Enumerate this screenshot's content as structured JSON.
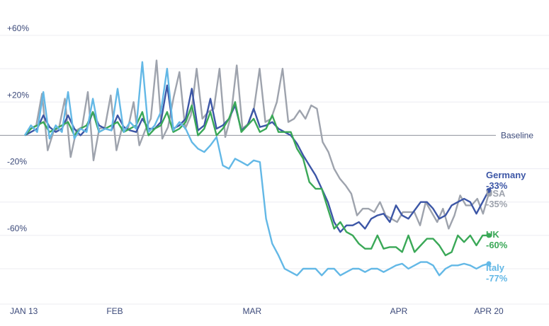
{
  "chart_data": {
    "type": "line",
    "title": "",
    "xlabel": "",
    "ylabel": "",
    "x_start": "2020-01-13",
    "x_ticks": [
      {
        "label": "JAN 13",
        "date": "2020-01-13"
      },
      {
        "label": "FEB",
        "date": "2020-02-01"
      },
      {
        "label": "MAR",
        "date": "2020-03-01"
      },
      {
        "label": "APR",
        "date": "2020-04-01"
      },
      {
        "label": "APR 20",
        "date": "2020-04-20"
      }
    ],
    "y_ticks": [
      {
        "label": "+60%",
        "value": 60
      },
      {
        "label": "+20%",
        "value": 20
      },
      {
        "label": "-20%",
        "value": -20
      },
      {
        "label": "-60%",
        "value": -60
      }
    ],
    "ylim": [
      -100,
      80
    ],
    "grid": true,
    "baseline": {
      "label": "Baseline",
      "value": 0
    },
    "series": [
      {
        "name": "USA",
        "end_label": "-35%",
        "color": "#9ea3ad",
        "values": [
          0,
          4,
          6,
          25,
          -9,
          2,
          5,
          22,
          -13,
          3,
          5,
          26,
          -15,
          4,
          5,
          24,
          -9,
          5,
          4,
          20,
          -6,
          3,
          10,
          45,
          -2,
          5,
          23,
          38,
          4,
          12,
          40,
          10,
          14,
          16,
          40,
          -1,
          12,
          42,
          4,
          7,
          16,
          40,
          8,
          10,
          20,
          40,
          8,
          10,
          15,
          10,
          18,
          16,
          -4,
          -10,
          -20,
          -26,
          -30,
          -35,
          -48,
          -44,
          -44,
          -46,
          -40,
          -48,
          -50,
          -52,
          -46,
          -46,
          -46,
          -54,
          -40,
          -46,
          -52,
          -44,
          -56,
          -48,
          -36,
          -42,
          -42,
          -38,
          -47,
          -35
        ]
      },
      {
        "name": "Germany",
        "end_label": "-33%",
        "color": "#3c56a6",
        "values": [
          0,
          2,
          4,
          12,
          5,
          2,
          4,
          12,
          4,
          0,
          4,
          14,
          6,
          4,
          3,
          12,
          5,
          3,
          2,
          10,
          4,
          4,
          8,
          30,
          4,
          6,
          10,
          28,
          3,
          6,
          22,
          4,
          6,
          10,
          18,
          3,
          6,
          16,
          5,
          6,
          8,
          4,
          2,
          0,
          -5,
          -12,
          -18,
          -24,
          -32,
          -40,
          -52,
          -58,
          -54,
          -54,
          -52,
          -56,
          -50,
          -48,
          -47,
          -52,
          -42,
          -48,
          -50,
          -45,
          -40,
          -40,
          -44,
          -50,
          -48,
          -42,
          -40,
          -38,
          -40,
          -47,
          -40,
          -33
        ]
      },
      {
        "name": "UK",
        "end_label": "-60%",
        "color": "#3aa857",
        "values": [
          0,
          4,
          6,
          8,
          2,
          4,
          6,
          8,
          0,
          4,
          6,
          14,
          2,
          4,
          6,
          8,
          2,
          4,
          6,
          14,
          0,
          4,
          6,
          14,
          2,
          4,
          8,
          18,
          0,
          4,
          14,
          0,
          4,
          10,
          20,
          2,
          6,
          10,
          2,
          4,
          12,
          2,
          2,
          2,
          -8,
          -14,
          -28,
          -32,
          -32,
          -44,
          -56,
          -52,
          -58,
          -60,
          -65,
          -68,
          -68,
          -60,
          -68,
          -67,
          -67,
          -70,
          -60,
          -70,
          -66,
          -62,
          -62,
          -66,
          -72,
          -70,
          -60,
          -64,
          -60,
          -66,
          -60,
          -60
        ]
      },
      {
        "name": "Italy",
        "end_label": "-77%",
        "color": "#63b8e6",
        "values": [
          0,
          6,
          2,
          26,
          -2,
          6,
          2,
          26,
          -2,
          4,
          2,
          22,
          2,
          4,
          3,
          28,
          2,
          8,
          4,
          44,
          2,
          6,
          14,
          40,
          3,
          8,
          4,
          -4,
          -8,
          -10,
          -6,
          -1,
          -18,
          -20,
          -14,
          -16,
          -18,
          -15,
          -16,
          -50,
          -65,
          -72,
          -80,
          -82,
          -84,
          -80,
          -80,
          -80,
          -84,
          -80,
          -80,
          -84,
          -82,
          -80,
          -80,
          -82,
          -80,
          -80,
          -82,
          -80,
          -78,
          -77,
          -80,
          -78,
          -76,
          -76,
          -78,
          -84,
          -80,
          -78,
          -78,
          -77,
          -78,
          -80,
          -78,
          -77
        ]
      }
    ]
  }
}
